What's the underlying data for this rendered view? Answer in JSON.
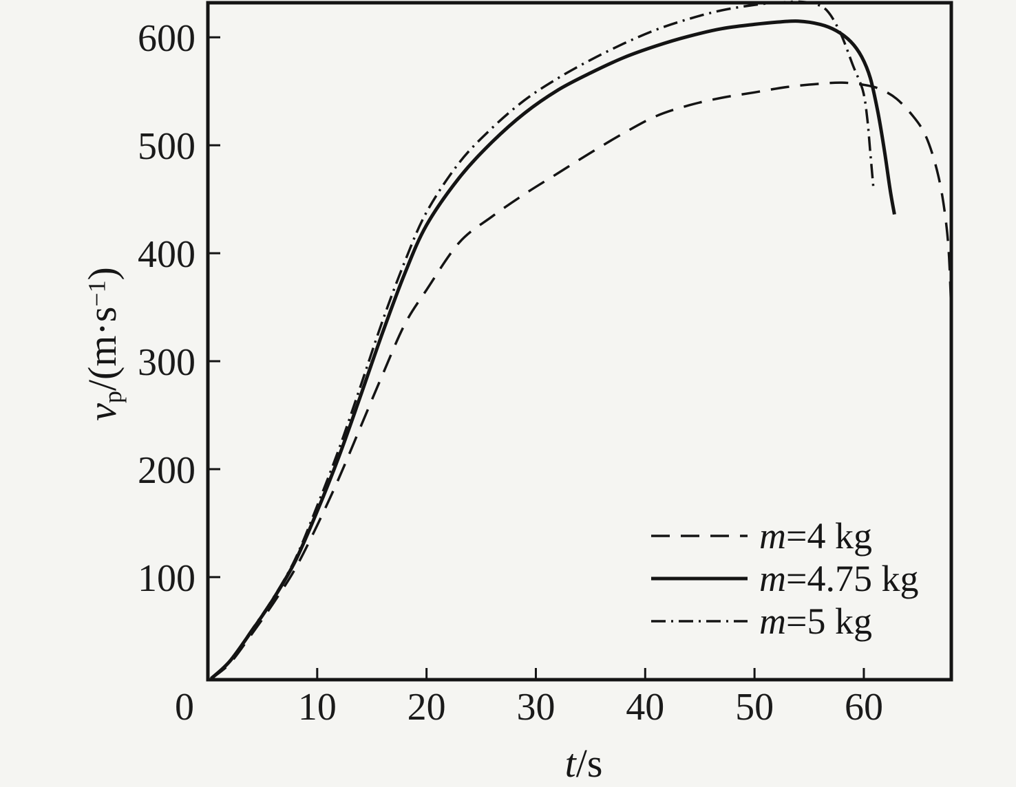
{
  "colors": {
    "ink": "#141414",
    "background": "#f5f5f2"
  },
  "axes": {
    "x": {
      "title_var": "t",
      "title_rest": "/s",
      "origin_label": "0"
    },
    "y": {
      "title_var": "v",
      "title_sub": "p",
      "title_mid": "/(m·s",
      "title_sup": "−1",
      "title_end": ")"
    }
  },
  "legend": {
    "position": "lower right",
    "items": [
      {
        "var": "m",
        "rest": "=4 kg",
        "style": "dashed"
      },
      {
        "var": "m",
        "rest": "=4.75 kg",
        "style": "solid"
      },
      {
        "var": "m",
        "rest": "=5 kg",
        "style": "dashdot"
      }
    ]
  },
  "chart_data": {
    "type": "line",
    "title": "",
    "xlabel": "t/s",
    "ylabel": "vp/(m·s−1)",
    "grid": false,
    "legend_position": "lower right",
    "x_range": [
      0,
      68
    ],
    "y_range": [
      5,
      632
    ],
    "x_ticks": [
      10,
      20,
      30,
      40,
      50,
      60
    ],
    "y_ticks": [
      100,
      200,
      300,
      400,
      500,
      600
    ],
    "series": [
      {
        "name": "m=4 kg",
        "style": "dashed",
        "points": [
          [
            0.3,
            6
          ],
          [
            2,
            20
          ],
          [
            4,
            47
          ],
          [
            6,
            76
          ],
          [
            8,
            108
          ],
          [
            10,
            148
          ],
          [
            12,
            192
          ],
          [
            14,
            240
          ],
          [
            16,
            288
          ],
          [
            18,
            334
          ],
          [
            20,
            366
          ],
          [
            23,
            410
          ],
          [
            26,
            434
          ],
          [
            29,
            455
          ],
          [
            32,
            474
          ],
          [
            35,
            493
          ],
          [
            38,
            511
          ],
          [
            41,
            527
          ],
          [
            44,
            537
          ],
          [
            47,
            544
          ],
          [
            50,
            549
          ],
          [
            53,
            554
          ],
          [
            56,
            557
          ],
          [
            58,
            558
          ],
          [
            60,
            556
          ],
          [
            61.5,
            552
          ],
          [
            63,
            543
          ],
          [
            64.5,
            527
          ],
          [
            65.5,
            512
          ],
          [
            66.3,
            491
          ],
          [
            67,
            463
          ],
          [
            67.5,
            430
          ],
          [
            67.8,
            396
          ],
          [
            68,
            345
          ]
        ]
      },
      {
        "name": "m=4.75 kg",
        "style": "solid",
        "points": [
          [
            0.3,
            6
          ],
          [
            2,
            22
          ],
          [
            4,
            50
          ],
          [
            6,
            80
          ],
          [
            8,
            115
          ],
          [
            10,
            161
          ],
          [
            12,
            212
          ],
          [
            14,
            269
          ],
          [
            16,
            327
          ],
          [
            18,
            381
          ],
          [
            20,
            426
          ],
          [
            23,
            470
          ],
          [
            26,
            503
          ],
          [
            29,
            530
          ],
          [
            32,
            551
          ],
          [
            35,
            567
          ],
          [
            38,
            581
          ],
          [
            41,
            592
          ],
          [
            44,
            601
          ],
          [
            47,
            608
          ],
          [
            50,
            612
          ],
          [
            52,
            614
          ],
          [
            54,
            615
          ],
          [
            56,
            612
          ],
          [
            57.5,
            606
          ],
          [
            58.8,
            596
          ],
          [
            59.8,
            582
          ],
          [
            60.6,
            562
          ],
          [
            61.3,
            530
          ],
          [
            61.9,
            494
          ],
          [
            62.4,
            459
          ],
          [
            62.8,
            436
          ]
        ]
      },
      {
        "name": "m=5 kg",
        "style": "dashdot",
        "points": [
          [
            0.3,
            6
          ],
          [
            2,
            22
          ],
          [
            4,
            51
          ],
          [
            6,
            81
          ],
          [
            8,
            117
          ],
          [
            10,
            166
          ],
          [
            12,
            219
          ],
          [
            14,
            278
          ],
          [
            16,
            338
          ],
          [
            18,
            392
          ],
          [
            20,
            438
          ],
          [
            23,
            484
          ],
          [
            26,
            516
          ],
          [
            29,
            542
          ],
          [
            32,
            562
          ],
          [
            35,
            579
          ],
          [
            38,
            594
          ],
          [
            41,
            607
          ],
          [
            44,
            617
          ],
          [
            47,
            625
          ],
          [
            50,
            630
          ],
          [
            52,
            632
          ],
          [
            54,
            633
          ],
          [
            55.5,
            631
          ],
          [
            56.7,
            624
          ],
          [
            57.9,
            603
          ],
          [
            59,
            574
          ],
          [
            59.9,
            551
          ],
          [
            60.3,
            526
          ],
          [
            60.6,
            492
          ],
          [
            60.9,
            458
          ]
        ]
      }
    ]
  }
}
